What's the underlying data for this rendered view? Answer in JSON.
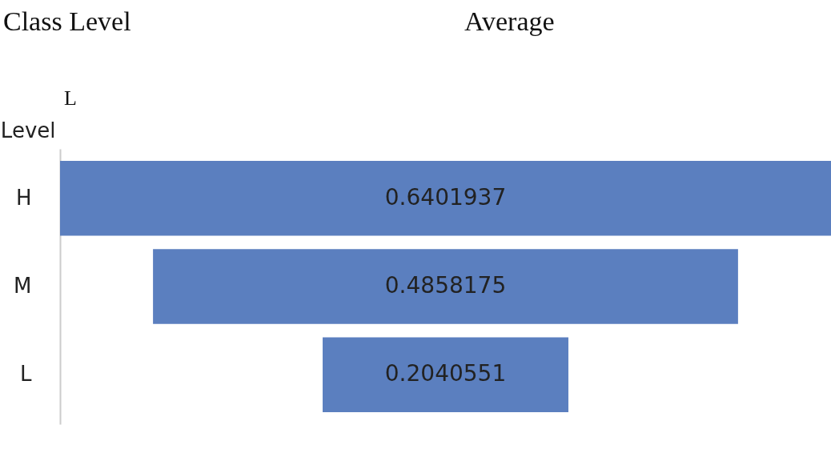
{
  "chart_data": {
    "type": "other",
    "title": "Average",
    "ylabel": "Level",
    "categories": [
      "H",
      "M",
      "L"
    ],
    "values": [
      0.6401937,
      0.4858175,
      0.2040551
    ],
    "color": "#5b7fbf",
    "data_labels": true,
    "annotations": [
      "Class Level",
      "L"
    ]
  }
}
